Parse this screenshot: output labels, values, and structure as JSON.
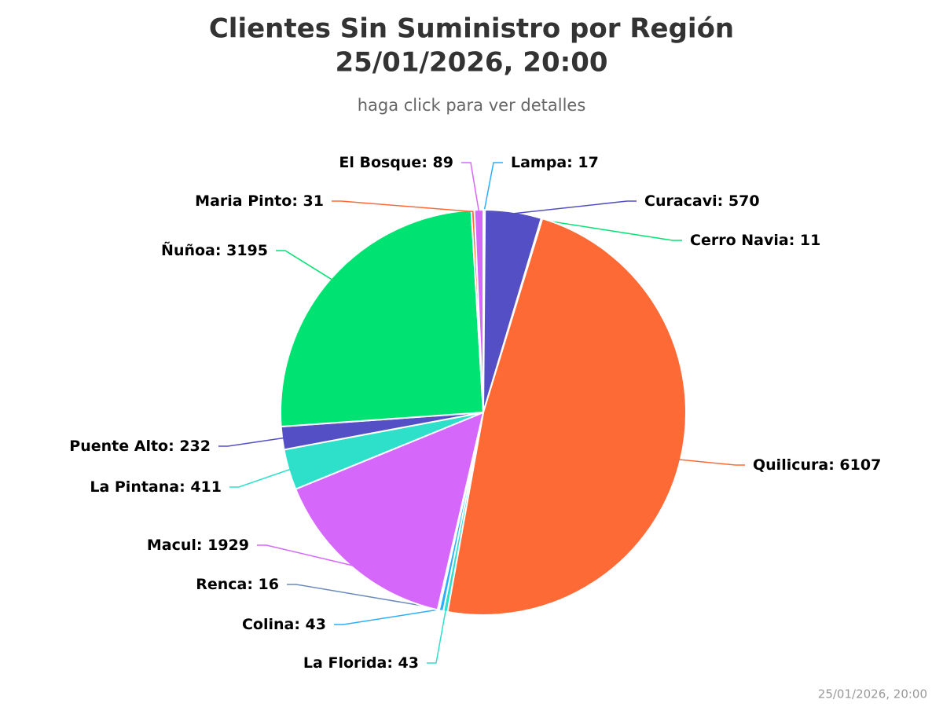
{
  "chart_data": {
    "type": "pie",
    "title_lines": [
      "Clientes Sin Suministro por Región",
      "25/01/2026, 20:00"
    ],
    "subtitle": "haga click para ver detalles",
    "credits": "25/01/2026, 20:00",
    "categories": [
      "Lampa",
      "Curacavi",
      "Cerro Navia",
      "Quilicura",
      "La Florida",
      "Colina",
      "Renca",
      "Macul",
      "La Pintana",
      "Puente Alto",
      "Ñuñoa",
      "Maria Pinto",
      "El Bosque"
    ],
    "values": [
      17,
      570,
      11,
      6107,
      43,
      43,
      16,
      1929,
      411,
      232,
      3195,
      31,
      89
    ],
    "colors": [
      "#2caffe",
      "#544fc5",
      "#00e272",
      "#fe6a35",
      "#2ee0ca",
      "#2caffe",
      "#6b8abc",
      "#d568fb",
      "#2ee0ca",
      "#544fc5",
      "#00e272",
      "#fe6a35",
      "#d568fb"
    ]
  }
}
